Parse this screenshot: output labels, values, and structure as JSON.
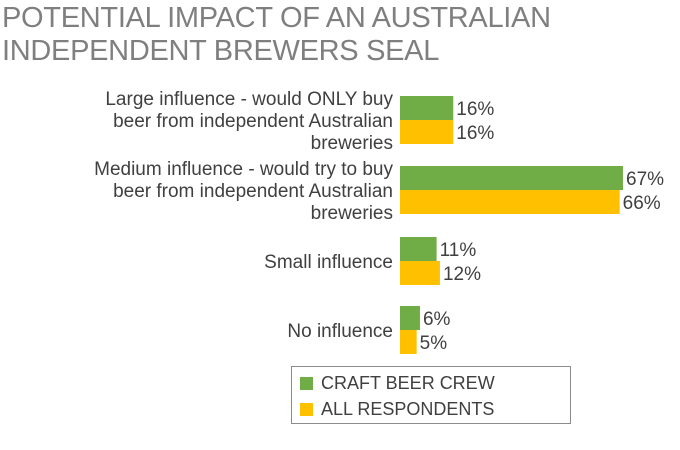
{
  "chart_data": {
    "type": "bar",
    "orientation": "horizontal",
    "title": "POTENTIAL IMPACT OF AN AUSTRALIAN INDEPENDENT BREWERS SEAL",
    "categories": [
      [
        "Large influence - would ONLY buy",
        "beer from independent Australian",
        "breweries"
      ],
      [
        "Medium influence - would try to buy",
        "beer from independent Australian",
        "breweries"
      ],
      [
        "Small influence"
      ],
      [
        "No influence"
      ]
    ],
    "series": [
      {
        "name": "CRAFT BEER CREW",
        "color": "#70ad47",
        "values": [
          16,
          67,
          11,
          6
        ],
        "labels": [
          "16%",
          "67%",
          "11%",
          "6%"
        ]
      },
      {
        "name": "ALL RESPONDENTS",
        "color": "#ffc000",
        "values": [
          16,
          66,
          12,
          5
        ],
        "labels": [
          "16%",
          "66%",
          "12%",
          "5%"
        ]
      }
    ],
    "xlim": [
      0,
      100
    ],
    "grid": false,
    "legend_position": "bottom"
  }
}
